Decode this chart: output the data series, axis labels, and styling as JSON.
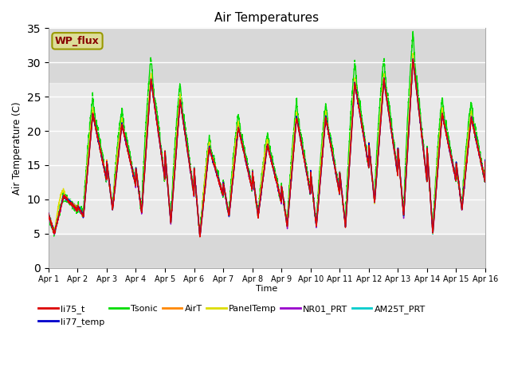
{
  "title": "Air Temperatures",
  "xlabel": "Time",
  "ylabel": "Air Temperature (C)",
  "xlim": [
    0,
    15
  ],
  "ylim": [
    0,
    35
  ],
  "yticks": [
    0,
    5,
    10,
    15,
    20,
    25,
    30,
    35
  ],
  "xtick_labels": [
    "Apr 1",
    "Apr 2",
    "Apr 3",
    "Apr 4",
    "Apr 5",
    "Apr 6",
    "Apr 7",
    "Apr 8",
    "Apr 9",
    "Apr 10",
    "Apr 11",
    "Apr 12",
    "Apr 13",
    "Apr 14",
    "Apr 15",
    "Apr 16"
  ],
  "series_colors": {
    "li75_t": "#dd0000",
    "li77_temp": "#0000cc",
    "Tsonic": "#00dd00",
    "AirT": "#ff8800",
    "PanelTemp": "#dddd00",
    "NR01_PRT": "#9900cc",
    "AM25T_PRT": "#00cccc"
  },
  "shaded_band_lo": 5,
  "shaded_band_hi": 27,
  "wp_flux_box_color": "#dddd99",
  "wp_flux_text_color": "#880000",
  "background_color": "#d8d8d8"
}
